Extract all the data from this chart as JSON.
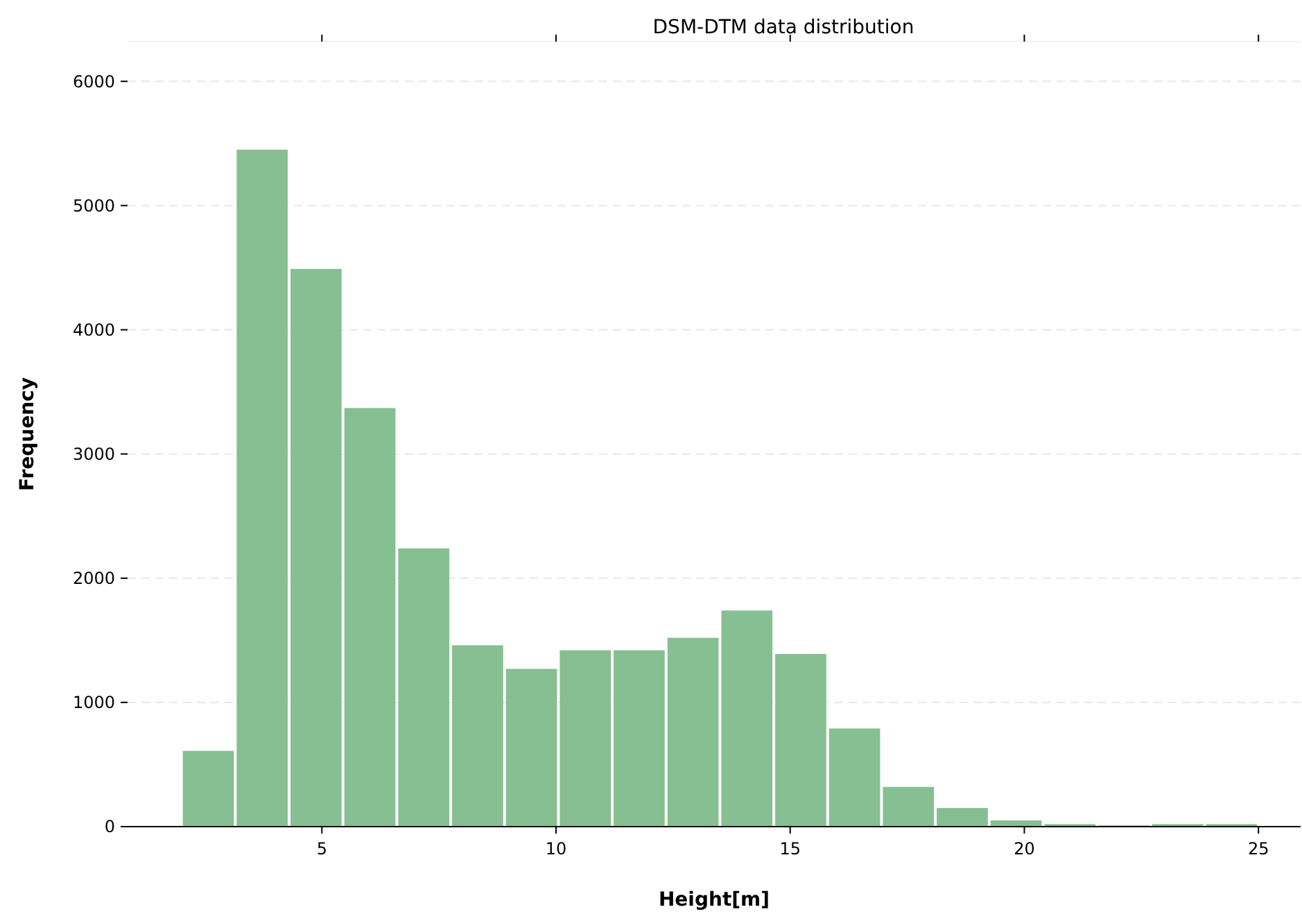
{
  "chart_data": {
    "type": "histogram",
    "title": "DSM-DTM data distribution",
    "xlabel": "Height[m]",
    "ylabel": "Frequency",
    "bins": [
      2.0,
      3.15,
      4.3,
      5.45,
      6.6,
      7.75,
      8.9,
      10.05,
      11.2,
      12.35,
      13.5,
      14.65,
      15.8,
      16.95,
      18.1,
      19.25,
      20.4,
      21.55,
      22.7,
      23.85,
      25.0
    ],
    "values": [
      610,
      5450,
      4490,
      3370,
      2240,
      1460,
      1270,
      1420,
      1420,
      1520,
      1740,
      1390,
      790,
      320,
      150,
      50,
      20,
      10,
      20,
      20
    ],
    "color": "#86bf91",
    "xlim": [
      0.85,
      25.9
    ],
    "xticks": [
      5,
      10,
      15,
      20,
      25
    ],
    "ylim": [
      0,
      6320
    ],
    "yticks": [
      0,
      1000,
      2000,
      3000,
      4000,
      5000,
      6000
    ],
    "grid": "y"
  }
}
